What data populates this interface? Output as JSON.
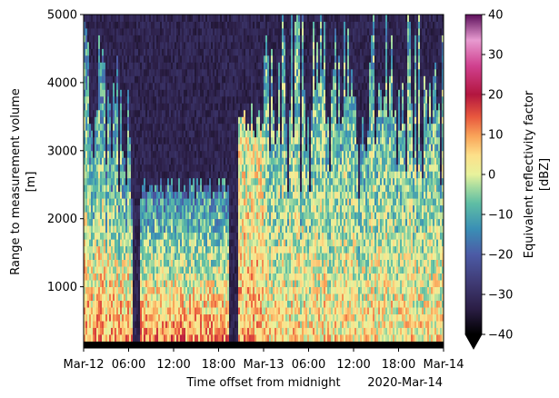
{
  "chart_data": {
    "type": "heatmap",
    "xlabel": "Time offset from midnight",
    "ylabel_lines": [
      "Range to measurement volume",
      "[m]"
    ],
    "x_offset_label": "2020-Mar-14",
    "x_range_hours": [
      0,
      48
    ],
    "x_ticks": [
      {
        "hour": 0,
        "label": "Mar-12"
      },
      {
        "hour": 6,
        "label": "06:00"
      },
      {
        "hour": 12,
        "label": "12:00"
      },
      {
        "hour": 18,
        "label": "18:00"
      },
      {
        "hour": 24,
        "label": "Mar-13"
      },
      {
        "hour": 30,
        "label": "06:00"
      },
      {
        "hour": 36,
        "label": "12:00"
      },
      {
        "hour": 42,
        "label": "18:00"
      },
      {
        "hour": 48,
        "label": "Mar-14"
      }
    ],
    "ylim": [
      100,
      5000
    ],
    "y_ticks": [
      1000,
      2000,
      3000,
      4000,
      5000
    ],
    "colorbar": {
      "label_lines": [
        "Equivalent reflectivity factor",
        "[dBZ]"
      ],
      "range": [
        -40,
        40
      ],
      "ticks": [
        -40,
        -30,
        -20,
        -10,
        0,
        10,
        20,
        30,
        40
      ],
      "extend": "min",
      "colormap": "spectral-like",
      "colors": [
        "#000000",
        "#2b1e45",
        "#3f3a73",
        "#4c5ba6",
        "#3a8fb5",
        "#5fbea4",
        "#a5db9f",
        "#e8f29c",
        "#fde08a",
        "#f9a459",
        "#e8583e",
        "#b3163f",
        "#d0418f",
        "#e79ad0",
        "#5c0f5a"
      ]
    },
    "regions": [
      {
        "t0": 0,
        "t1": 6.5,
        "z_cloud_top": 5000,
        "z_cloud_base": 100,
        "dbz_low_level": 10,
        "dbz_upper": -15
      },
      {
        "t0": 6.5,
        "t1": 7.5,
        "z_cloud_top": 0,
        "z_cloud_base": 100,
        "dbz_low_level": -40,
        "dbz_upper": -40
      },
      {
        "t0": 7.5,
        "t1": 19.5,
        "z_cloud_top": 2600,
        "z_cloud_base": 100,
        "dbz_low_level": 12,
        "dbz_upper": -15
      },
      {
        "t0": 19.5,
        "t1": 20.5,
        "z_cloud_top": 0,
        "z_cloud_base": 100,
        "dbz_low_level": -40,
        "dbz_upper": -40
      },
      {
        "t0": 20.5,
        "t1": 24,
        "z_cloud_top": 3700,
        "z_cloud_base": 100,
        "dbz_low_level": 8,
        "dbz_upper": 0
      },
      {
        "t0": 24,
        "t1": 48,
        "z_cloud_top": 5000,
        "z_cloud_base": 100,
        "dbz_low_level": 5,
        "dbz_upper": -10
      }
    ],
    "background_dbz": -32
  }
}
